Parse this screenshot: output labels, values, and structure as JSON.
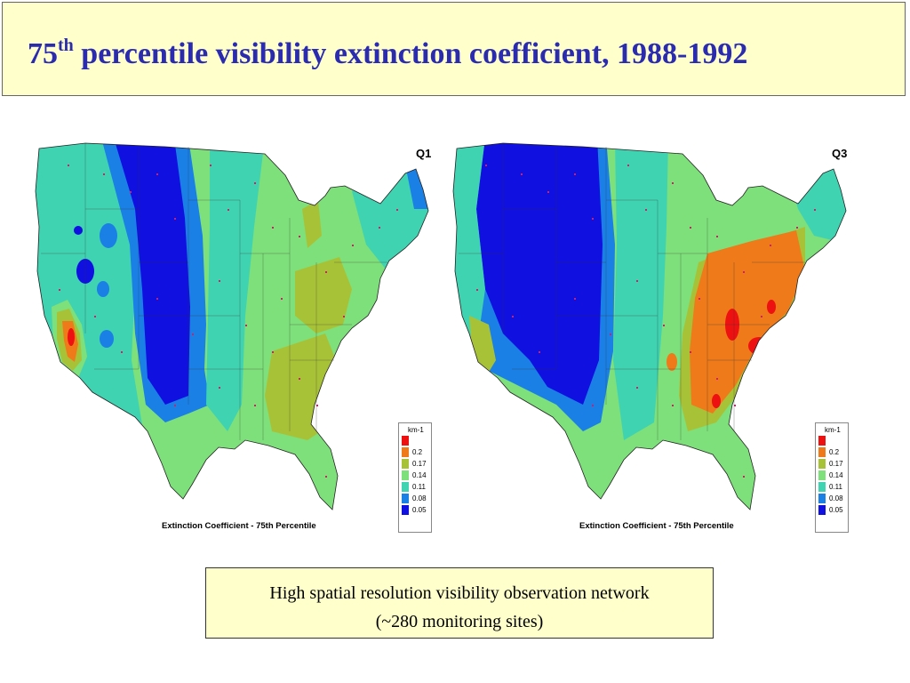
{
  "title": {
    "prefix": "75",
    "superscript": "th",
    "rest": " percentile visibility extinction coefficient, 1988-1992"
  },
  "maps": [
    {
      "quarter_label": "Q1",
      "caption": "Extinction Coefficient - 75th Percentile",
      "pattern": "winter"
    },
    {
      "quarter_label": "Q3",
      "caption": "Extinction Coefficient - 75th Percentile",
      "pattern": "summer"
    }
  ],
  "legend": {
    "title": "km-1",
    "items": [
      {
        "label": "",
        "color": "#ee1111"
      },
      {
        "label": "0.2",
        "color": "#ef7a1a"
      },
      {
        "label": "0.17",
        "color": "#a8c238"
      },
      {
        "label": "0.14",
        "color": "#7ee07a"
      },
      {
        "label": "0.11",
        "color": "#3fd3b2"
      },
      {
        "label": "0.08",
        "color": "#1a80e6"
      },
      {
        "label": "0.05",
        "color": "#1010e0"
      }
    ]
  },
  "note": {
    "line1": "High spatial resolution visibility observation network",
    "line2": "(~280 monitoring sites)"
  }
}
